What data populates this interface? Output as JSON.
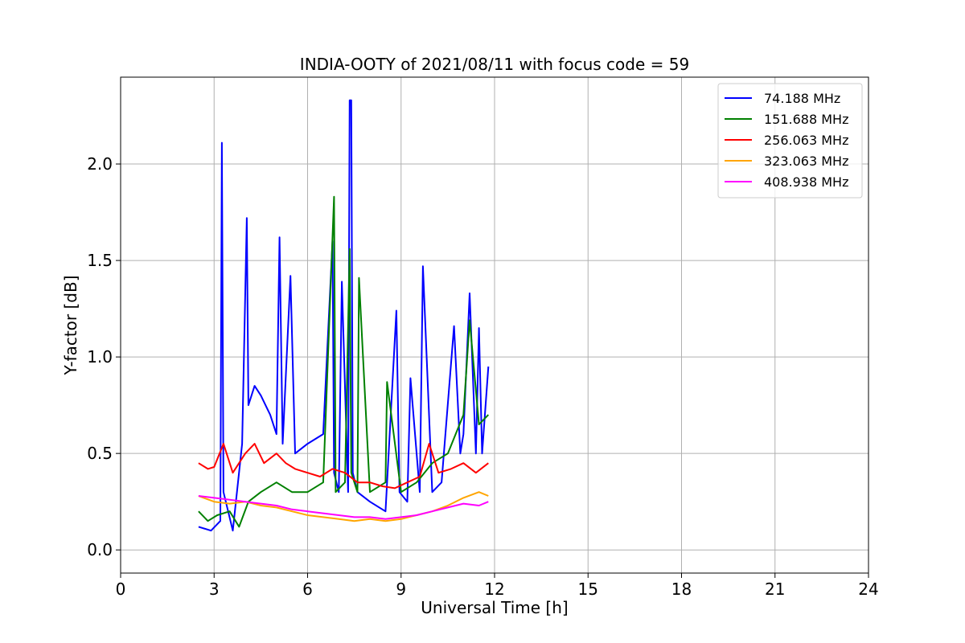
{
  "chart_data": {
    "type": "line",
    "title": "INDIA-OOTY of 2021/08/11 with focus code = 59",
    "xlabel": "Universal Time [h]",
    "ylabel": "Y-factor [dB]",
    "xlim": [
      0,
      24
    ],
    "ylim": [
      -0.12,
      2.45
    ],
    "xticks": [
      0,
      3,
      6,
      9,
      12,
      15,
      18,
      21,
      24
    ],
    "xtick_labels": [
      "0",
      "3",
      "6",
      "9",
      "12",
      "15",
      "18",
      "21",
      "24"
    ],
    "yticks": [
      0.0,
      0.5,
      1.0,
      1.5,
      2.0
    ],
    "ytick_labels": [
      "0.0",
      "0.5",
      "1.0",
      "1.5",
      "2.0"
    ],
    "grid": true,
    "legend_position": "top-right",
    "series": [
      {
        "name": "74.188 MHz",
        "color": "#0000ff",
        "x": [
          2.5,
          2.9,
          3.2,
          3.25,
          3.3,
          3.6,
          3.9,
          4.05,
          4.1,
          4.3,
          4.5,
          4.8,
          5.0,
          5.1,
          5.2,
          5.45,
          5.6,
          6.0,
          6.5,
          6.8,
          6.85,
          7.0,
          7.1,
          7.3,
          7.35,
          7.4,
          7.45,
          7.6,
          8.0,
          8.5,
          8.85,
          8.95,
          9.2,
          9.3,
          9.6,
          9.7,
          10.0,
          10.3,
          10.7,
          10.9,
          11.0,
          11.2,
          11.4,
          11.5,
          11.6,
          11.8
        ],
        "y": [
          0.12,
          0.1,
          0.15,
          2.11,
          0.3,
          0.1,
          0.55,
          1.72,
          0.75,
          0.85,
          0.8,
          0.7,
          0.6,
          1.62,
          0.55,
          1.42,
          0.5,
          0.55,
          0.6,
          1.6,
          0.4,
          0.3,
          1.39,
          0.3,
          2.33,
          2.33,
          0.4,
          0.3,
          0.25,
          0.2,
          1.24,
          0.3,
          0.25,
          0.89,
          0.3,
          1.47,
          0.3,
          0.35,
          1.16,
          0.5,
          0.6,
          1.33,
          0.5,
          1.15,
          0.5,
          0.95
        ]
      },
      {
        "name": "151.688 MHz",
        "color": "#008000",
        "x": [
          2.5,
          2.8,
          3.1,
          3.5,
          3.8,
          4.1,
          4.5,
          5.0,
          5.5,
          6.0,
          6.5,
          6.85,
          6.9,
          7.2,
          7.35,
          7.4,
          7.6,
          7.65,
          8.0,
          8.5,
          8.55,
          9.0,
          9.5,
          10.0,
          10.5,
          11.0,
          11.2,
          11.5,
          11.8
        ],
        "y": [
          0.2,
          0.15,
          0.18,
          0.2,
          0.12,
          0.25,
          0.3,
          0.35,
          0.3,
          0.3,
          0.35,
          1.83,
          0.3,
          0.35,
          1.56,
          0.4,
          0.3,
          1.41,
          0.3,
          0.35,
          0.87,
          0.3,
          0.35,
          0.45,
          0.5,
          0.7,
          1.19,
          0.65,
          0.7
        ]
      },
      {
        "name": "256.063 MHz",
        "color": "#ff0000",
        "x": [
          2.5,
          2.8,
          3.0,
          3.3,
          3.6,
          4.0,
          4.3,
          4.6,
          5.0,
          5.3,
          5.6,
          6.0,
          6.4,
          6.8,
          7.2,
          7.6,
          8.0,
          8.4,
          8.8,
          9.2,
          9.6,
          9.9,
          10.2,
          10.6,
          11.0,
          11.4,
          11.8
        ],
        "y": [
          0.45,
          0.42,
          0.43,
          0.55,
          0.4,
          0.5,
          0.55,
          0.45,
          0.5,
          0.45,
          0.42,
          0.4,
          0.38,
          0.42,
          0.4,
          0.35,
          0.35,
          0.33,
          0.32,
          0.35,
          0.38,
          0.55,
          0.4,
          0.42,
          0.45,
          0.4,
          0.45
        ]
      },
      {
        "name": "323.063 MHz",
        "color": "#ffa500",
        "x": [
          2.5,
          3.0,
          3.5,
          4.0,
          4.5,
          5.0,
          5.5,
          6.0,
          6.5,
          7.0,
          7.5,
          8.0,
          8.5,
          9.0,
          9.5,
          10.0,
          10.5,
          11.0,
          11.5,
          11.8
        ],
        "y": [
          0.28,
          0.25,
          0.24,
          0.25,
          0.23,
          0.22,
          0.2,
          0.18,
          0.17,
          0.16,
          0.15,
          0.16,
          0.15,
          0.16,
          0.18,
          0.2,
          0.23,
          0.27,
          0.3,
          0.28
        ]
      },
      {
        "name": "408.938 MHz",
        "color": "#ff00ff",
        "x": [
          2.5,
          3.0,
          3.5,
          4.0,
          4.5,
          5.0,
          5.5,
          6.0,
          6.5,
          7.0,
          7.5,
          8.0,
          8.5,
          9.0,
          9.5,
          10.0,
          10.5,
          11.0,
          11.5,
          11.8
        ],
        "y": [
          0.28,
          0.27,
          0.26,
          0.25,
          0.24,
          0.23,
          0.21,
          0.2,
          0.19,
          0.18,
          0.17,
          0.17,
          0.16,
          0.17,
          0.18,
          0.2,
          0.22,
          0.24,
          0.23,
          0.25
        ]
      }
    ]
  }
}
